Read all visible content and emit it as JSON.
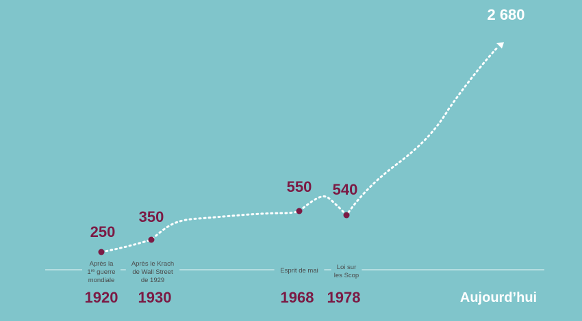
{
  "chart_data": {
    "type": "line",
    "title": "",
    "xlabel": "",
    "ylabel": "",
    "grid": false,
    "legend": "none",
    "colors": {
      "background": "#80c5cb",
      "accent": "#7b1a44",
      "line": "#ffffff",
      "annotation_text": "#4a4a4a",
      "axis": "#ffffff"
    },
    "points": [
      {
        "year": "1920",
        "value": 250,
        "value_label": "250",
        "event": [
          "Après la",
          "1re guerre",
          "mondiale"
        ]
      },
      {
        "year": "1930",
        "value": 350,
        "value_label": "350",
        "event": [
          "Après le Krach",
          "de Wall Street",
          "de 1929"
        ]
      },
      {
        "year": "1968",
        "value": 550,
        "value_label": "550",
        "event": [
          "Esprit de mai"
        ]
      },
      {
        "year": "1978",
        "value": 540,
        "value_label": "540",
        "event": [
          "Loi sur",
          "les Scop"
        ]
      },
      {
        "year": "Aujourd’hui",
        "value": 2680,
        "value_label": "2 680",
        "event": []
      }
    ]
  }
}
